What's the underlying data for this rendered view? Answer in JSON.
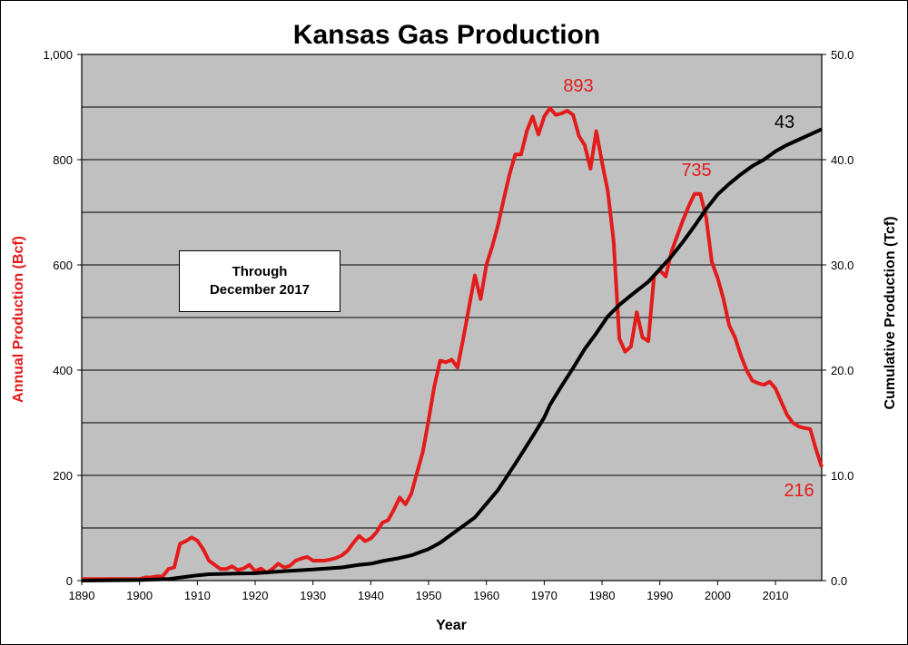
{
  "chart_data": {
    "type": "line",
    "title": "Kansas Gas Production",
    "xlabel": "Year",
    "ylabel_left": "Annual Production (Bcf)",
    "ylabel_right": "Cumulative Production (Tcf)",
    "xlim": [
      1890,
      2018
    ],
    "ylim_left": [
      0,
      1000
    ],
    "ylim_right": [
      0,
      50
    ],
    "x_ticks": [
      "1890",
      "1900",
      "1910",
      "1920",
      "1930",
      "1940",
      "1950",
      "1960",
      "1970",
      "1980",
      "1990",
      "2000",
      "2010"
    ],
    "y_ticks_left": [
      "0",
      "200",
      "400",
      "600",
      "800",
      "1,000"
    ],
    "y_ticks_right": [
      "0.0",
      "10.0",
      "20.0",
      "30.0",
      "40.0",
      "50.0"
    ],
    "grid": "horizontal",
    "annotation": [
      "Through",
      "December 2017"
    ],
    "peak_labels": {
      "annual_peak": "893",
      "annual_second_peak": "735",
      "annual_latest": "216",
      "cumulative_latest": "43"
    },
    "series": [
      {
        "name": "Annual Production (Bcf)",
        "axis": "left",
        "color": "#e31b1b",
        "points": [
          [
            1890,
            3
          ],
          [
            1898,
            3
          ],
          [
            1900,
            3
          ],
          [
            1901,
            6
          ],
          [
            1902,
            6
          ],
          [
            1903,
            8
          ],
          [
            1904,
            8
          ],
          [
            1905,
            22
          ],
          [
            1906,
            25
          ],
          [
            1907,
            70
          ],
          [
            1908,
            75
          ],
          [
            1909,
            82
          ],
          [
            1910,
            76
          ],
          [
            1911,
            60
          ],
          [
            1912,
            38
          ],
          [
            1913,
            30
          ],
          [
            1914,
            22
          ],
          [
            1915,
            22
          ],
          [
            1916,
            27
          ],
          [
            1917,
            20
          ],
          [
            1918,
            23
          ],
          [
            1919,
            30
          ],
          [
            1920,
            18
          ],
          [
            1921,
            23
          ],
          [
            1922,
            15
          ],
          [
            1923,
            22
          ],
          [
            1924,
            32
          ],
          [
            1925,
            25
          ],
          [
            1926,
            28
          ],
          [
            1927,
            38
          ],
          [
            1928,
            42
          ],
          [
            1929,
            45
          ],
          [
            1930,
            38
          ],
          [
            1931,
            38
          ],
          [
            1932,
            38
          ],
          [
            1933,
            40
          ],
          [
            1934,
            43
          ],
          [
            1935,
            48
          ],
          [
            1936,
            57
          ],
          [
            1937,
            72
          ],
          [
            1938,
            85
          ],
          [
            1939,
            75
          ],
          [
            1940,
            80
          ],
          [
            1941,
            92
          ],
          [
            1942,
            110
          ],
          [
            1943,
            115
          ],
          [
            1944,
            135
          ],
          [
            1945,
            158
          ],
          [
            1946,
            145
          ],
          [
            1947,
            165
          ],
          [
            1948,
            205
          ],
          [
            1949,
            245
          ],
          [
            1950,
            305
          ],
          [
            1951,
            370
          ],
          [
            1952,
            418
          ],
          [
            1953,
            415
          ],
          [
            1954,
            420
          ],
          [
            1955,
            405
          ],
          [
            1956,
            460
          ],
          [
            1957,
            520
          ],
          [
            1958,
            580
          ],
          [
            1959,
            535
          ],
          [
            1960,
            600
          ],
          [
            1961,
            635
          ],
          [
            1962,
            675
          ],
          [
            1963,
            725
          ],
          [
            1964,
            772
          ],
          [
            1965,
            810
          ],
          [
            1966,
            810
          ],
          [
            1967,
            855
          ],
          [
            1968,
            882
          ],
          [
            1969,
            848
          ],
          [
            1970,
            882
          ],
          [
            1971,
            898
          ],
          [
            1972,
            885
          ],
          [
            1973,
            888
          ],
          [
            1974,
            893
          ],
          [
            1975,
            885
          ],
          [
            1976,
            845
          ],
          [
            1977,
            828
          ],
          [
            1978,
            783
          ],
          [
            1979,
            854
          ],
          [
            1980,
            795
          ],
          [
            1981,
            740
          ],
          [
            1982,
            645
          ],
          [
            1983,
            460
          ],
          [
            1984,
            435
          ],
          [
            1985,
            445
          ],
          [
            1986,
            510
          ],
          [
            1987,
            462
          ],
          [
            1988,
            455
          ],
          [
            1989,
            580
          ],
          [
            1990,
            590
          ],
          [
            1991,
            578
          ],
          [
            1992,
            625
          ],
          [
            1993,
            655
          ],
          [
            1994,
            685
          ],
          [
            1995,
            712
          ],
          [
            1996,
            735
          ],
          [
            1997,
            735
          ],
          [
            1998,
            690
          ],
          [
            1999,
            605
          ],
          [
            2000,
            575
          ],
          [
            2001,
            535
          ],
          [
            2002,
            485
          ],
          [
            2003,
            462
          ],
          [
            2004,
            428
          ],
          [
            2005,
            400
          ],
          [
            2006,
            380
          ],
          [
            2007,
            375
          ],
          [
            2008,
            372
          ],
          [
            2009,
            378
          ],
          [
            2010,
            365
          ],
          [
            2011,
            340
          ],
          [
            2012,
            315
          ],
          [
            2013,
            300
          ],
          [
            2014,
            293
          ],
          [
            2015,
            290
          ],
          [
            2016,
            288
          ],
          [
            2017,
            250
          ],
          [
            2018,
            216
          ]
        ]
      },
      {
        "name": "Cumulative Production (Tcf)",
        "axis": "right",
        "color": "#000000",
        "points": [
          [
            1890,
            0
          ],
          [
            1900,
            0.05
          ],
          [
            1905,
            0.15
          ],
          [
            1908,
            0.35
          ],
          [
            1910,
            0.5
          ],
          [
            1912,
            0.6
          ],
          [
            1915,
            0.65
          ],
          [
            1920,
            0.7
          ],
          [
            1925,
            0.9
          ],
          [
            1930,
            1.05
          ],
          [
            1935,
            1.25
          ],
          [
            1938,
            1.5
          ],
          [
            1940,
            1.6
          ],
          [
            1942,
            1.85
          ],
          [
            1945,
            2.15
          ],
          [
            1947,
            2.4
          ],
          [
            1950,
            3.0
          ],
          [
            1952,
            3.6
          ],
          [
            1955,
            4.8
          ],
          [
            1958,
            6.0
          ],
          [
            1960,
            7.3
          ],
          [
            1962,
            8.6
          ],
          [
            1965,
            11.1
          ],
          [
            1968,
            13.7
          ],
          [
            1970,
            15.5
          ],
          [
            1971,
            16.7
          ],
          [
            1973,
            18.5
          ],
          [
            1975,
            20.2
          ],
          [
            1977,
            22.0
          ],
          [
            1979,
            23.5
          ],
          [
            1981,
            25.1
          ],
          [
            1983,
            26.2
          ],
          [
            1985,
            27.1
          ],
          [
            1988,
            28.4
          ],
          [
            1990,
            29.6
          ],
          [
            1992,
            30.8
          ],
          [
            1994,
            32.2
          ],
          [
            1996,
            33.7
          ],
          [
            1998,
            35.3
          ],
          [
            2000,
            36.7
          ],
          [
            2002,
            37.7
          ],
          [
            2004,
            38.6
          ],
          [
            2006,
            39.4
          ],
          [
            2008,
            40.0
          ],
          [
            2010,
            40.8
          ],
          [
            2012,
            41.4
          ],
          [
            2014,
            41.9
          ],
          [
            2016,
            42.4
          ],
          [
            2018,
            42.9
          ]
        ]
      }
    ]
  }
}
